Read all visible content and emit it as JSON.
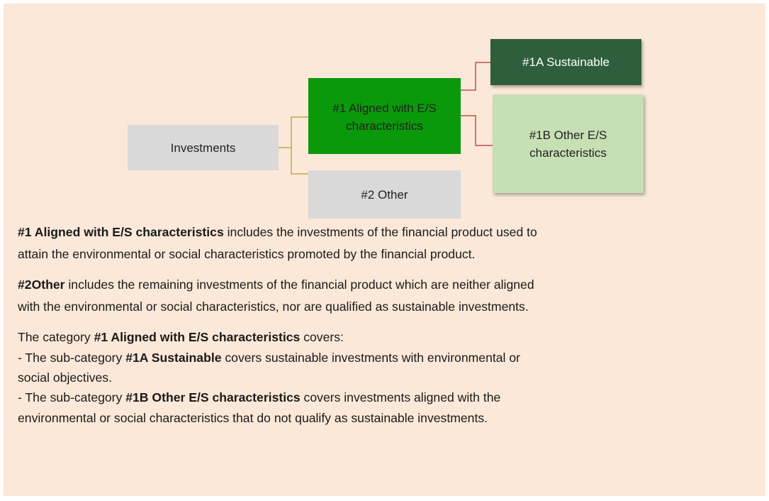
{
  "nodes": [
    {
      "label": [
        "Investments"
      ]
    },
    {
      "label": [
        "#1 Aligned with E/S",
        "characteristics"
      ]
    },
    {
      "label": [
        "#2 Other"
      ]
    },
    {
      "label": [
        "#1A Sustainable"
      ]
    },
    {
      "label": [
        "#1B Other E/S",
        "characteristics"
      ]
    }
  ],
  "paragraphs": [
    [
      [
        {
          "text": "#1 Aligned with E/S characteristics",
          "bold": true
        },
        {
          "text": " includes the investments of the financial product used to"
        }
      ],
      [
        {
          "text": "attain the environmental or social characteristics promoted by the financial product."
        }
      ]
    ],
    [
      [
        {
          "text": "#2Other",
          "bold": true
        },
        {
          "text": " includes the remaining investments of the financial product which are neither aligned"
        }
      ],
      [
        {
          "text": "with the environmental or social characteristics, nor are qualified as sustainable investments."
        }
      ]
    ],
    [
      [
        {
          "text": "The category "
        },
        {
          "text": "#1 Aligned with E/S characteristics",
          "bold": true
        },
        {
          "text": " covers:"
        }
      ],
      [
        {
          "text": "- The sub-category "
        },
        {
          "text": "#1A Sustainable",
          "bold": true
        },
        {
          "text": " covers sustainable investments with environmental or"
        }
      ],
      [
        {
          "text": "social objectives."
        }
      ],
      [
        {
          "text": "- The sub-category "
        },
        {
          "text": "#1B Other E/S characteristics",
          "bold": true
        },
        {
          "text": " covers investments aligned with the"
        }
      ],
      [
        {
          "text": "environmental or social characteristics that do not qualify as sustainable investments."
        }
      ]
    ]
  ]
}
